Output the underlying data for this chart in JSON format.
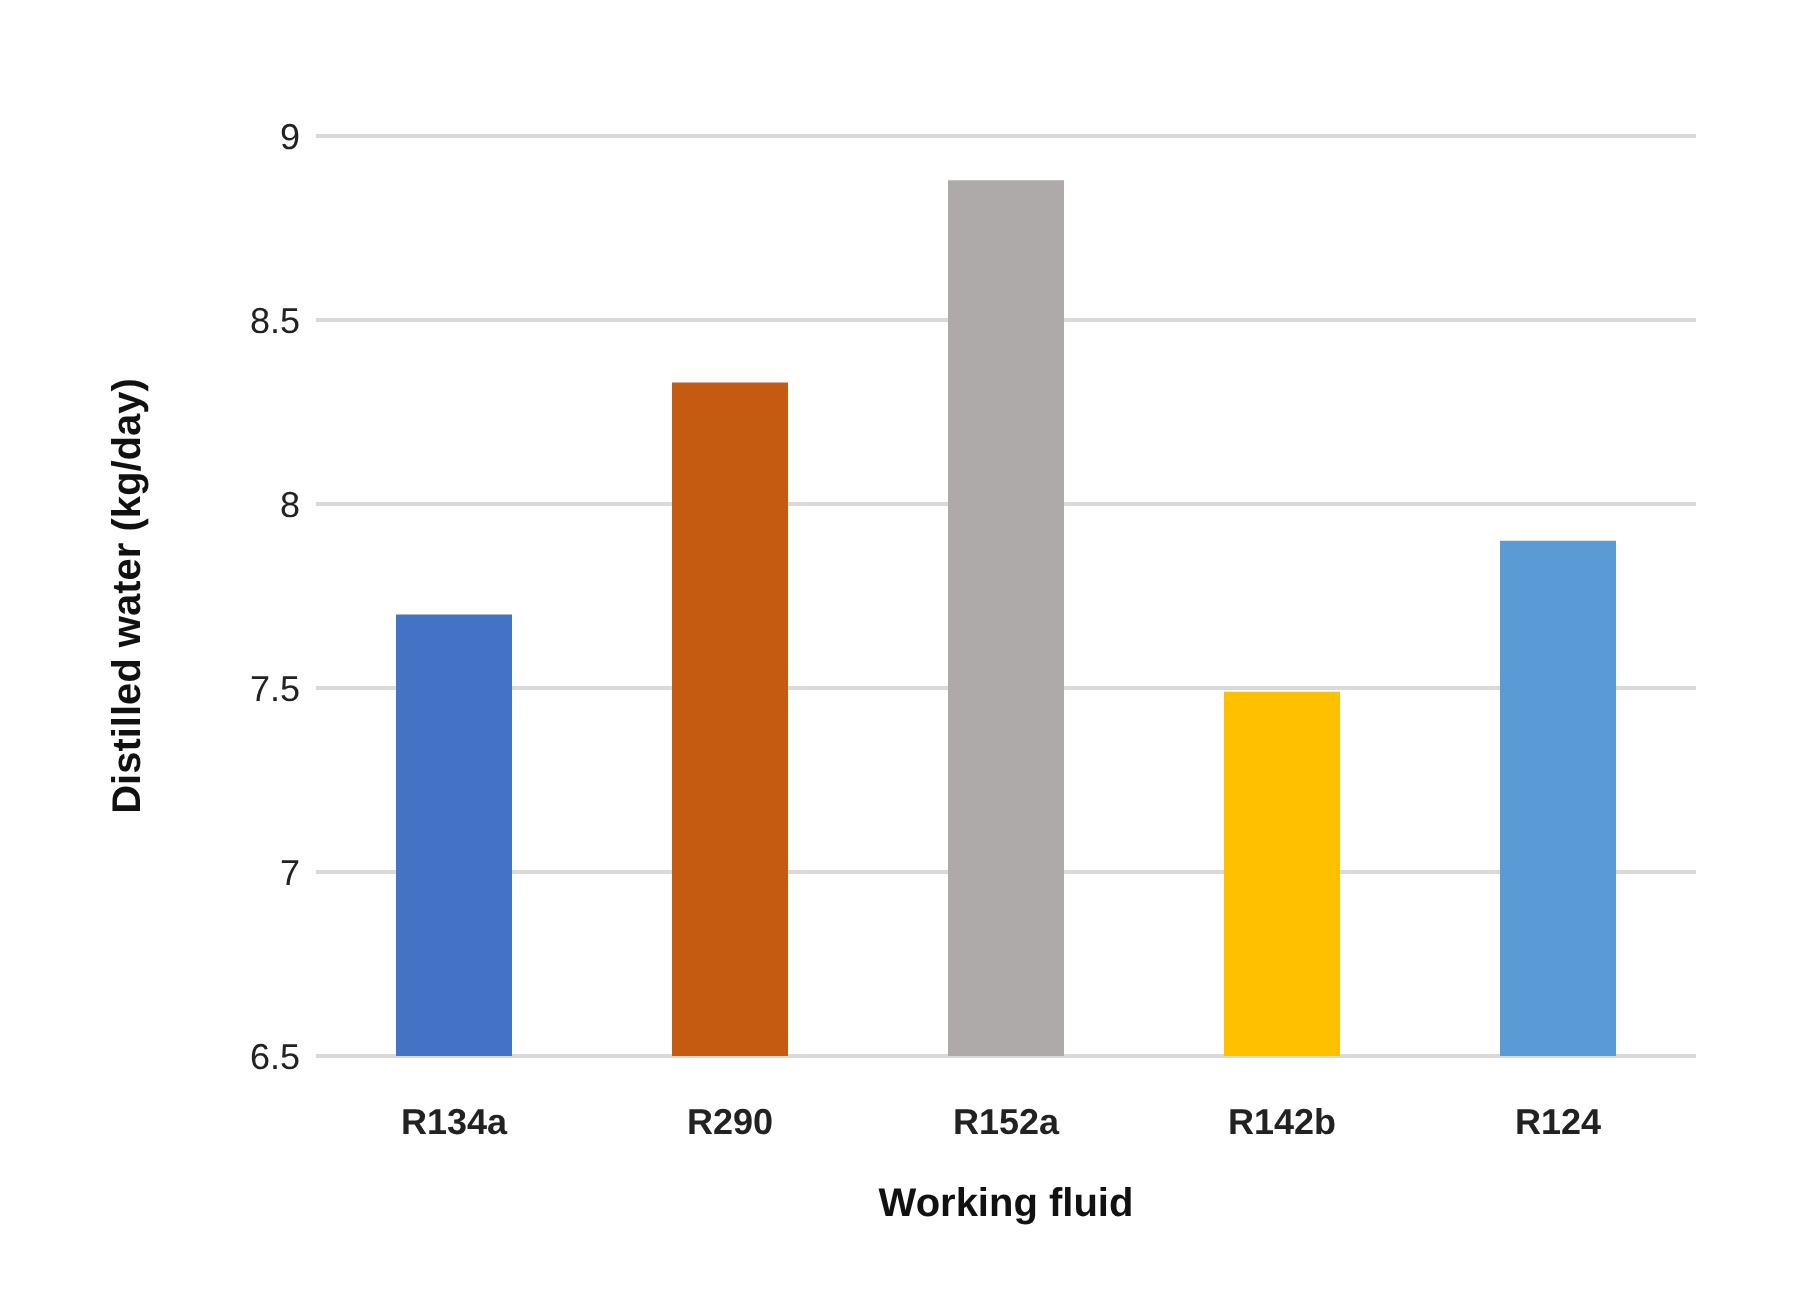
{
  "chart_data": {
    "type": "bar",
    "xlabel": "Working fluid",
    "ylabel": "Distilled water (kg/day)",
    "categories": [
      "R134a",
      "R290",
      "R152a",
      "R142b",
      "R124"
    ],
    "values": [
      7.7,
      8.33,
      8.88,
      7.49,
      7.9
    ],
    "colors": [
      "#4472c4",
      "#c55a11",
      "#aeaaaa",
      "#ffc000",
      "#5b9bd5"
    ],
    "ylim": [
      6.5,
      9
    ],
    "yticks": [
      6.5,
      7,
      7.5,
      8,
      8.5,
      9
    ],
    "grid": "y",
    "legend": false
  }
}
